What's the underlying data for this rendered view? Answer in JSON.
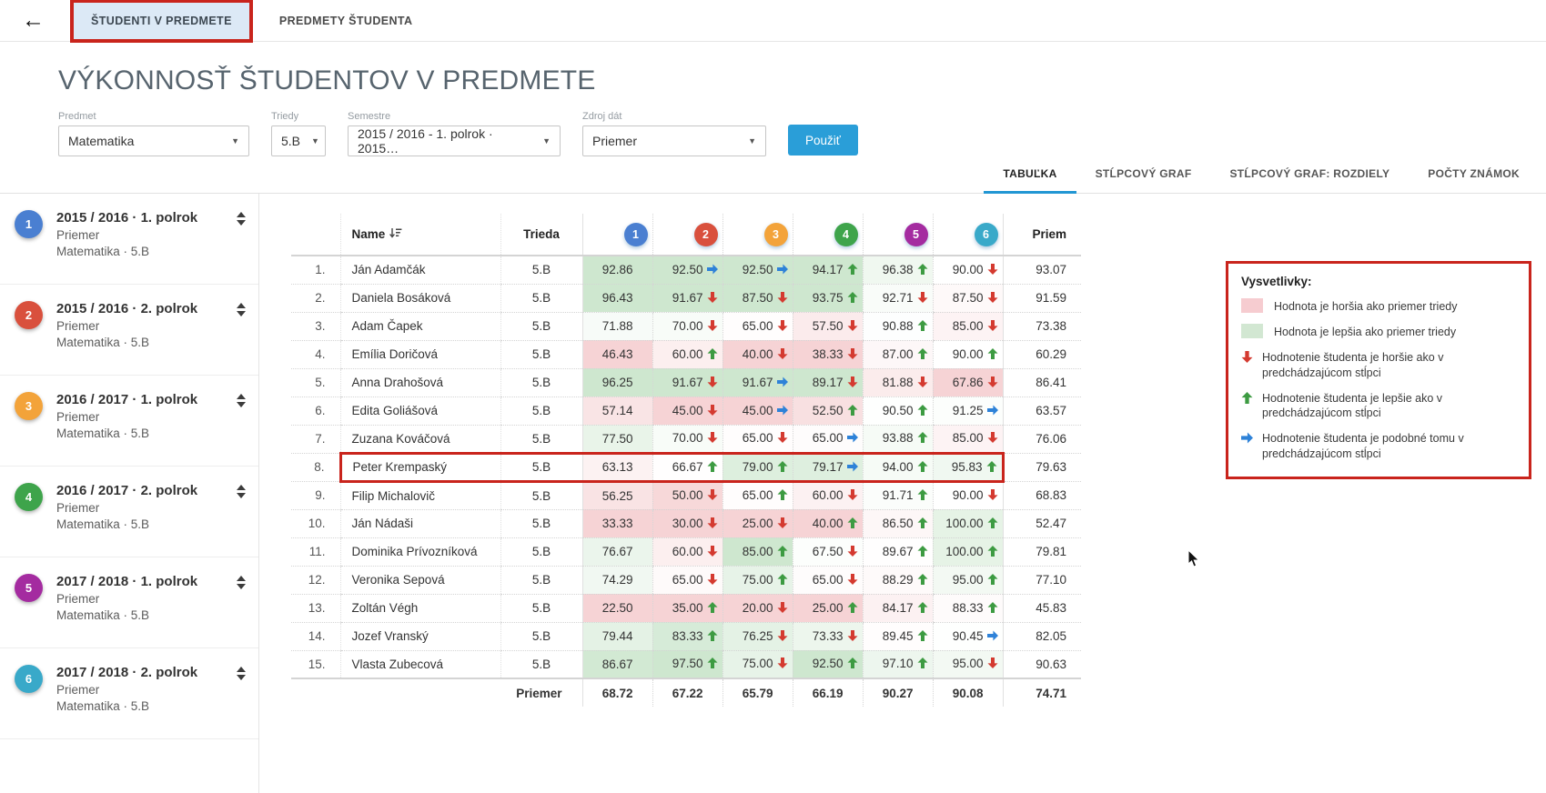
{
  "header": {
    "back_icon": "arrow-left",
    "tabs": [
      {
        "label": "ŠTUDENTI V PREDMETE",
        "active": true,
        "annotated": true
      },
      {
        "label": "PREDMETY ŠTUDENTA",
        "active": false
      }
    ]
  },
  "page_title": "VÝKONNOSŤ ŠTUDENTOV V PREDMETE",
  "filters": {
    "predmet": {
      "label": "Predmet",
      "value": "Matematika"
    },
    "triedy": {
      "label": "Triedy",
      "value": "5.B"
    },
    "semestre": {
      "label": "Semestre",
      "value": "2015 / 2016 - 1. polrok · 2015…"
    },
    "zdroj": {
      "label": "Zdroj dát",
      "value": "Priemer"
    },
    "apply_label": "Použiť"
  },
  "view_tabs": [
    {
      "label": "TABUĽKA",
      "active": true
    },
    {
      "label": "STĹPCOVÝ GRAF",
      "active": false
    },
    {
      "label": "STĹPCOVÝ GRAF: ROZDIELY",
      "active": false
    },
    {
      "label": "POČTY ZNÁMOK",
      "active": false
    }
  ],
  "sidebar": {
    "items": [
      {
        "num": "1",
        "color": "#4a7fd1",
        "title": "2015 / 2016 · 1. polrok",
        "line2": "Priemer",
        "line3": "Matematika · 5.B"
      },
      {
        "num": "2",
        "color": "#d9503d",
        "title": "2015 / 2016 · 2. polrok",
        "line2": "Priemer",
        "line3": "Matematika · 5.B"
      },
      {
        "num": "3",
        "color": "#f3a33a",
        "title": "2016 / 2017 · 1. polrok",
        "line2": "Priemer",
        "line3": "Matematika · 5.B"
      },
      {
        "num": "4",
        "color": "#3ea44b",
        "title": "2016 / 2017 · 2. polrok",
        "line2": "Priemer",
        "line3": "Matematika · 5.B"
      },
      {
        "num": "5",
        "color": "#a42ba0",
        "title": "2017 / 2018 · 1. polrok",
        "line2": "Priemer",
        "line3": "Matematika · 5.B"
      },
      {
        "num": "6",
        "color": "#39a9c9",
        "title": "2017 / 2018 · 2. polrok",
        "line2": "Priemer",
        "line3": "Matematika · 5.B"
      }
    ]
  },
  "table": {
    "name_header": "Name",
    "trieda_header": "Trieda",
    "priem_header": "Priem",
    "columns": [
      {
        "num": "1",
        "color": "#4a7fd1"
      },
      {
        "num": "2",
        "color": "#d9503d"
      },
      {
        "num": "3",
        "color": "#f3a33a"
      },
      {
        "num": "4",
        "color": "#3ea44b"
      },
      {
        "num": "5",
        "color": "#a42ba0"
      },
      {
        "num": "6",
        "color": "#39a9c9"
      }
    ],
    "column_averages": [
      68.72,
      67.22,
      65.79,
      66.19,
      90.27,
      90.08
    ],
    "rows": [
      {
        "rank": "1.",
        "name": "Ján Adamčák",
        "trieda": "5.B",
        "cells": [
          {
            "v": "92.86"
          },
          {
            "v": "92.50",
            "t": "same"
          },
          {
            "v": "92.50",
            "t": "same"
          },
          {
            "v": "94.17",
            "t": "up"
          },
          {
            "v": "96.38",
            "t": "up"
          },
          {
            "v": "90.00",
            "t": "down"
          }
        ],
        "priem": "93.07"
      },
      {
        "rank": "2.",
        "name": "Daniela Bosáková",
        "trieda": "5.B",
        "cells": [
          {
            "v": "96.43"
          },
          {
            "v": "91.67",
            "t": "down"
          },
          {
            "v": "87.50",
            "t": "down"
          },
          {
            "v": "93.75",
            "t": "up"
          },
          {
            "v": "92.71",
            "t": "down"
          },
          {
            "v": "87.50",
            "t": "down"
          }
        ],
        "priem": "91.59"
      },
      {
        "rank": "3.",
        "name": "Adam Čapek",
        "trieda": "5.B",
        "cells": [
          {
            "v": "71.88"
          },
          {
            "v": "70.00",
            "t": "down"
          },
          {
            "v": "65.00",
            "t": "down"
          },
          {
            "v": "57.50",
            "t": "down"
          },
          {
            "v": "90.88",
            "t": "up"
          },
          {
            "v": "85.00",
            "t": "down"
          }
        ],
        "priem": "73.38"
      },
      {
        "rank": "4.",
        "name": "Emília Doričová",
        "trieda": "5.B",
        "cells": [
          {
            "v": "46.43"
          },
          {
            "v": "60.00",
            "t": "up"
          },
          {
            "v": "40.00",
            "t": "down"
          },
          {
            "v": "38.33",
            "t": "down"
          },
          {
            "v": "87.00",
            "t": "up"
          },
          {
            "v": "90.00",
            "t": "up"
          }
        ],
        "priem": "60.29"
      },
      {
        "rank": "5.",
        "name": "Anna Drahošová",
        "trieda": "5.B",
        "cells": [
          {
            "v": "96.25"
          },
          {
            "v": "91.67",
            "t": "down"
          },
          {
            "v": "91.67",
            "t": "same"
          },
          {
            "v": "89.17",
            "t": "down"
          },
          {
            "v": "81.88",
            "t": "down"
          },
          {
            "v": "67.86",
            "t": "down"
          }
        ],
        "priem": "86.41"
      },
      {
        "rank": "6.",
        "name": "Edita Goliášová",
        "trieda": "5.B",
        "cells": [
          {
            "v": "57.14"
          },
          {
            "v": "45.00",
            "t": "down"
          },
          {
            "v": "45.00",
            "t": "same"
          },
          {
            "v": "52.50",
            "t": "up"
          },
          {
            "v": "90.50",
            "t": "up"
          },
          {
            "v": "91.25",
            "t": "same"
          }
        ],
        "priem": "63.57"
      },
      {
        "rank": "7.",
        "name": "Zuzana Kováčová",
        "trieda": "5.B",
        "cells": [
          {
            "v": "77.50"
          },
          {
            "v": "70.00",
            "t": "down"
          },
          {
            "v": "65.00",
            "t": "down"
          },
          {
            "v": "65.00",
            "t": "same"
          },
          {
            "v": "93.88",
            "t": "up"
          },
          {
            "v": "85.00",
            "t": "down"
          }
        ],
        "priem": "76.06"
      },
      {
        "rank": "8.",
        "name": "Peter Krempaský",
        "trieda": "5.B",
        "highlight": true,
        "cells": [
          {
            "v": "63.13"
          },
          {
            "v": "66.67",
            "t": "up"
          },
          {
            "v": "79.00",
            "t": "up"
          },
          {
            "v": "79.17",
            "t": "same"
          },
          {
            "v": "94.00",
            "t": "up"
          },
          {
            "v": "95.83",
            "t": "up"
          }
        ],
        "priem": "79.63"
      },
      {
        "rank": "9.",
        "name": "Filip Michalovič",
        "trieda": "5.B",
        "cells": [
          {
            "v": "56.25"
          },
          {
            "v": "50.00",
            "t": "down"
          },
          {
            "v": "65.00",
            "t": "up"
          },
          {
            "v": "60.00",
            "t": "down"
          },
          {
            "v": "91.71",
            "t": "up"
          },
          {
            "v": "90.00",
            "t": "down"
          }
        ],
        "priem": "68.83"
      },
      {
        "rank": "10.",
        "name": "Ján Nádaši",
        "trieda": "5.B",
        "cells": [
          {
            "v": "33.33"
          },
          {
            "v": "30.00",
            "t": "down"
          },
          {
            "v": "25.00",
            "t": "down"
          },
          {
            "v": "40.00",
            "t": "up"
          },
          {
            "v": "86.50",
            "t": "up"
          },
          {
            "v": "100.00",
            "t": "up"
          }
        ],
        "priem": "52.47"
      },
      {
        "rank": "11.",
        "name": "Dominika Prívozníková",
        "trieda": "5.B",
        "cells": [
          {
            "v": "76.67"
          },
          {
            "v": "60.00",
            "t": "down"
          },
          {
            "v": "85.00",
            "t": "up"
          },
          {
            "v": "67.50",
            "t": "down"
          },
          {
            "v": "89.67",
            "t": "up"
          },
          {
            "v": "100.00",
            "t": "up"
          }
        ],
        "priem": "79.81"
      },
      {
        "rank": "12.",
        "name": "Veronika Sepová",
        "trieda": "5.B",
        "cells": [
          {
            "v": "74.29"
          },
          {
            "v": "65.00",
            "t": "down"
          },
          {
            "v": "75.00",
            "t": "up"
          },
          {
            "v": "65.00",
            "t": "down"
          },
          {
            "v": "88.29",
            "t": "up"
          },
          {
            "v": "95.00",
            "t": "up"
          }
        ],
        "priem": "77.10"
      },
      {
        "rank": "13.",
        "name": "Zoltán Végh",
        "trieda": "5.B",
        "cells": [
          {
            "v": "22.50"
          },
          {
            "v": "35.00",
            "t": "up"
          },
          {
            "v": "20.00",
            "t": "down"
          },
          {
            "v": "25.00",
            "t": "up"
          },
          {
            "v": "84.17",
            "t": "up"
          },
          {
            "v": "88.33",
            "t": "up"
          }
        ],
        "priem": "45.83"
      },
      {
        "rank": "14.",
        "name": "Jozef Vranský",
        "trieda": "5.B",
        "cells": [
          {
            "v": "79.44"
          },
          {
            "v": "83.33",
            "t": "up"
          },
          {
            "v": "76.25",
            "t": "down"
          },
          {
            "v": "73.33",
            "t": "down"
          },
          {
            "v": "89.45",
            "t": "up"
          },
          {
            "v": "90.45",
            "t": "same"
          }
        ],
        "priem": "82.05"
      },
      {
        "rank": "15.",
        "name": "Vlasta Zubecová",
        "trieda": "5.B",
        "cells": [
          {
            "v": "86.67"
          },
          {
            "v": "97.50",
            "t": "up"
          },
          {
            "v": "75.00",
            "t": "down"
          },
          {
            "v": "92.50",
            "t": "up"
          },
          {
            "v": "97.10",
            "t": "up"
          },
          {
            "v": "95.00",
            "t": "down"
          }
        ],
        "priem": "90.63"
      }
    ],
    "footer_label": "Priemer",
    "footer_values": [
      "68.72",
      "67.22",
      "65.79",
      "66.19",
      "90.27",
      "90.08"
    ],
    "footer_priem": "74.71"
  },
  "legend": {
    "title": "Vysvetlivky:",
    "swatch_items": [
      {
        "type": "worse",
        "text": "Hodnota je horšia ako priemer triedy"
      },
      {
        "type": "better",
        "text": "Hodnota je lepšia ako priemer triedy"
      }
    ],
    "arrow_items": [
      {
        "dir": "down",
        "text": "Hodnotenie študenta je horšie ako v predchádzajúcom stĺpci"
      },
      {
        "dir": "up",
        "text": "Hodnotenie študenta je lepšie ako v predchádzajúcom stĺpci"
      },
      {
        "dir": "same",
        "text": "Hodnotenie študenta je podobné tomu v predchádzajúcom stĺpci"
      }
    ]
  },
  "colors": {
    "annotation_red": "#c9241c",
    "accent_blue": "#2196d3",
    "arrow_up": "#3d9b42",
    "arrow_down": "#d43a30",
    "arrow_same": "#2e82d8",
    "cell_better_base": "#3ca041",
    "cell_worse_base": "#da5056",
    "active_tab_bg": "#dce9f6"
  }
}
